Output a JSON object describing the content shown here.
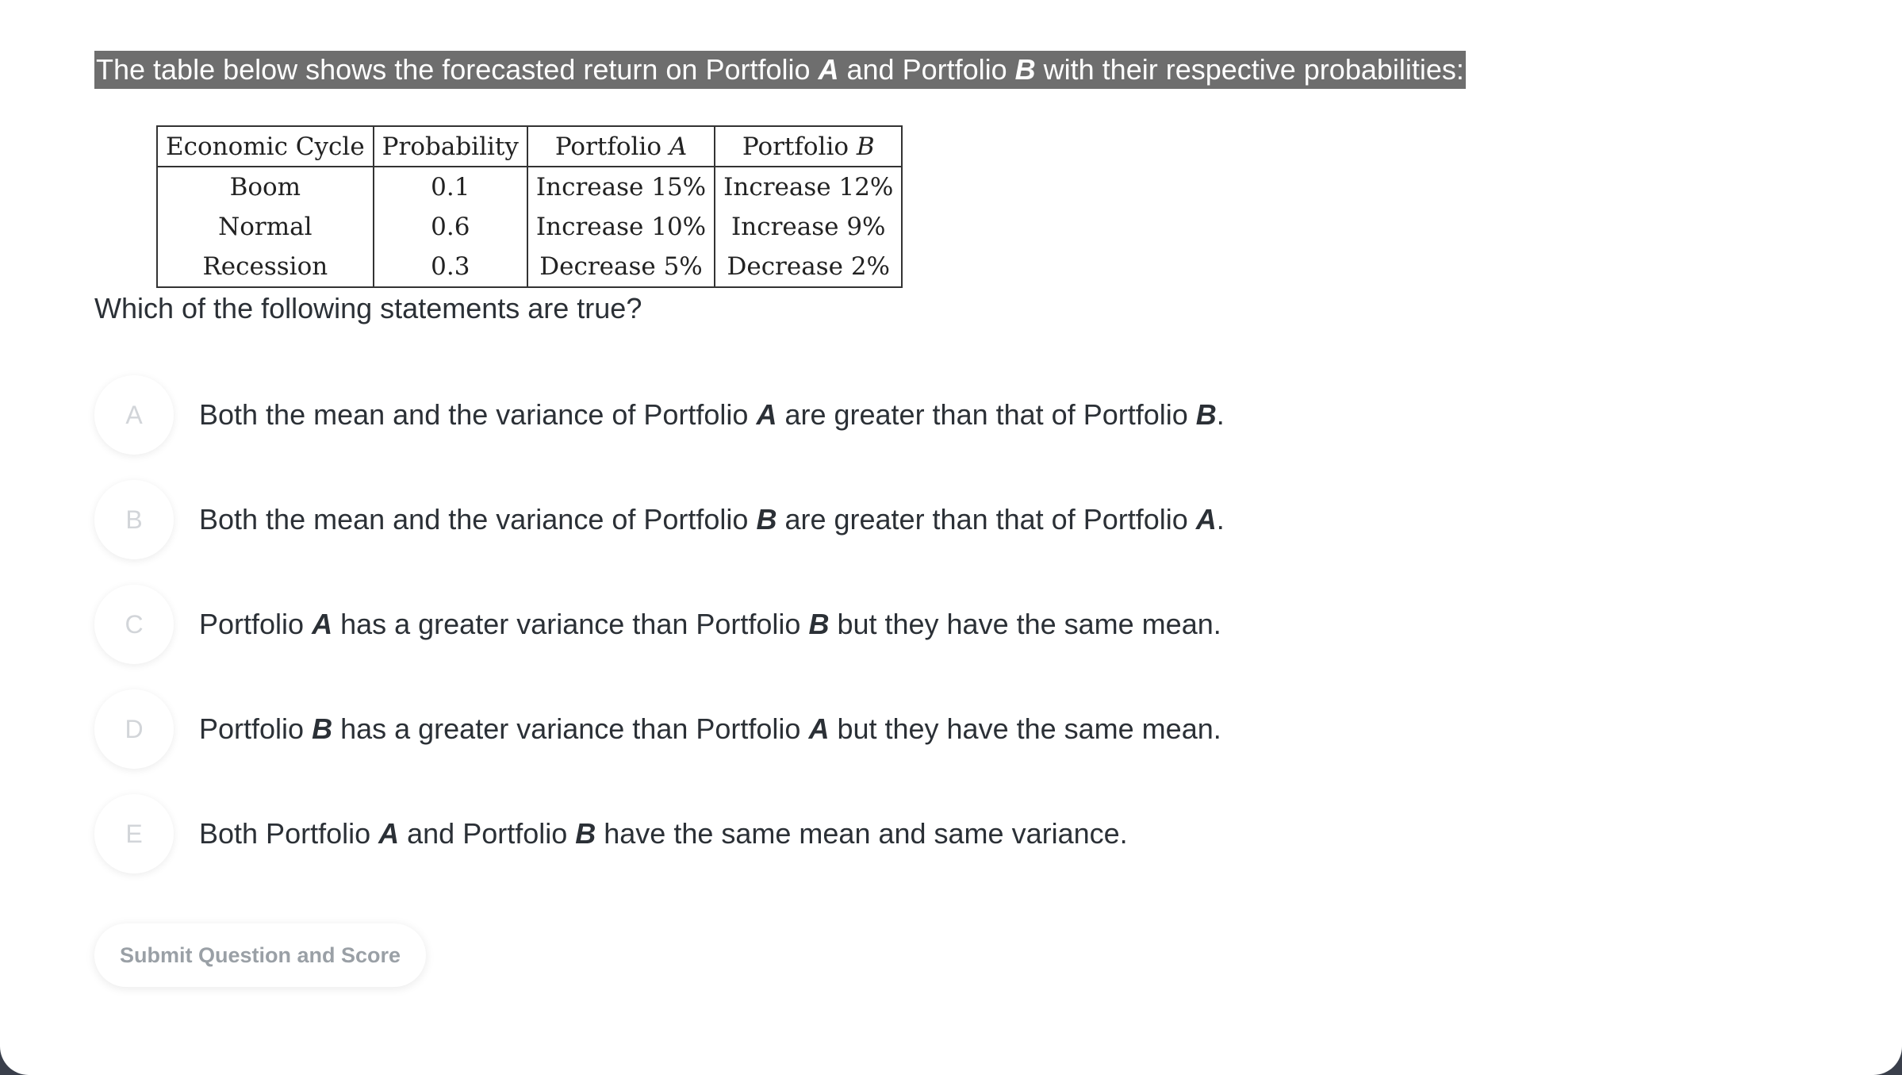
{
  "question": {
    "intro_prefix": "The table below shows the forecasted return on Portfolio ",
    "intro_a": "A",
    "intro_mid": " and Portfolio ",
    "intro_b": "B",
    "intro_suffix": " with their respective probabilities:",
    "prompt": "Which of the following statements are true?"
  },
  "table": {
    "headers": {
      "cycle": "Economic Cycle",
      "probability": "Probability",
      "portfolio_a_prefix": "Portfolio ",
      "portfolio_a_var": "A",
      "portfolio_b_prefix": "Portfolio ",
      "portfolio_b_var": "B"
    },
    "rows": [
      {
        "cycle": "Boom",
        "probability": "0.1",
        "a": "Increase 15%",
        "b": "Increase 12%"
      },
      {
        "cycle": "Normal",
        "probability": "0.6",
        "a": "Increase 10%",
        "b": "Increase 9%"
      },
      {
        "cycle": "Recession",
        "probability": "0.3",
        "a": "Decrease 5%",
        "b": "Decrease 2%"
      }
    ]
  },
  "options": [
    {
      "letter": "A",
      "t1": "Both the mean and the variance of Portfolio ",
      "v1": "A",
      "t2": " are greater than that of Portfolio ",
      "v2": "B",
      "t3": "."
    },
    {
      "letter": "B",
      "t1": "Both the mean and the variance of Portfolio ",
      "v1": "B",
      "t2": " are greater than that of Portfolio ",
      "v2": "A",
      "t3": "."
    },
    {
      "letter": "C",
      "t1": "Portfolio ",
      "v1": "A",
      "t2": " has a greater variance than Portfolio ",
      "v2": "B",
      "t3": " but they have the same mean."
    },
    {
      "letter": "D",
      "t1": "Portfolio ",
      "v1": "B",
      "t2": " has a greater variance than Portfolio ",
      "v2": "A",
      "t3": " but they have the same mean."
    },
    {
      "letter": "E",
      "t1": "Both Portfolio ",
      "v1": "A",
      "t2": " and Portfolio ",
      "v2": "B",
      "t3": " have the same mean and same variance."
    }
  ],
  "submit": {
    "label": "Submit Question and Score"
  },
  "colors": {
    "background": "#3a3f4b",
    "card": "#ffffff",
    "highlight": "#6e6e6e",
    "text": "#2b3036",
    "muted_letter": "#d2d5d9",
    "button_text": "#9aa0a6"
  }
}
